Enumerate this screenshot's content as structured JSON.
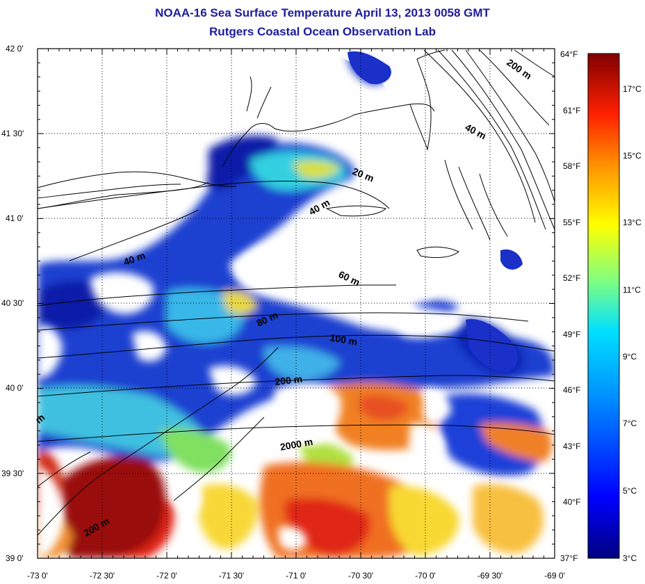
{
  "header": {
    "title": "NOAA-16 Sea Surface Temperature April 13, 2013 0058 GMT",
    "subtitle": "Rutgers Coastal Ocean Observation Lab"
  },
  "axes": {
    "lat_ticks": [
      "42 0'",
      "41 30'",
      "41 0'",
      "40 30'",
      "40 0'",
      "39 30'",
      "39 0'"
    ],
    "lon_ticks": [
      "-73 0'",
      "-72 30'",
      "-72 0'",
      "-71 30'",
      "-71 0'",
      "-70 30'",
      "-70 0'",
      "-69 30'",
      "-69 0'"
    ],
    "lat_range": [
      39.0,
      42.0
    ],
    "lon_range": [
      -73.0,
      -69.0
    ],
    "right_f_ticks": [
      "64°F",
      "61°F",
      "58°F",
      "55°F",
      "52°F",
      "49°F",
      "46°F",
      "43°F",
      "40°F",
      "37°F"
    ]
  },
  "colorbar": {
    "celsius_ticks": [
      "17°C",
      "15°C",
      "13°C",
      "11°C",
      "9°C",
      "7°C",
      "5°C",
      "3°C"
    ],
    "range_c": [
      3,
      18
    ],
    "colors": [
      "#000080",
      "#0000ff",
      "#0080ff",
      "#00ffff",
      "#80ff80",
      "#ffff00",
      "#ff8000",
      "#ff0000",
      "#800000"
    ]
  },
  "contours": {
    "labels": [
      "200 m",
      "40 m",
      "20 m",
      "40 m",
      "40 m",
      "60 m",
      "80 m",
      "100 m",
      "200 m",
      "2000 m",
      "200 m",
      "m"
    ]
  },
  "colors": {
    "title": "#1c1c9e",
    "land": "#ffffff",
    "coast": "#000000",
    "deep_blue": "#1428c8",
    "cyan": "#30c8e8",
    "yellow": "#f0e030",
    "orange": "#f08020",
    "red": "#d82018",
    "dark_red": "#900000"
  }
}
